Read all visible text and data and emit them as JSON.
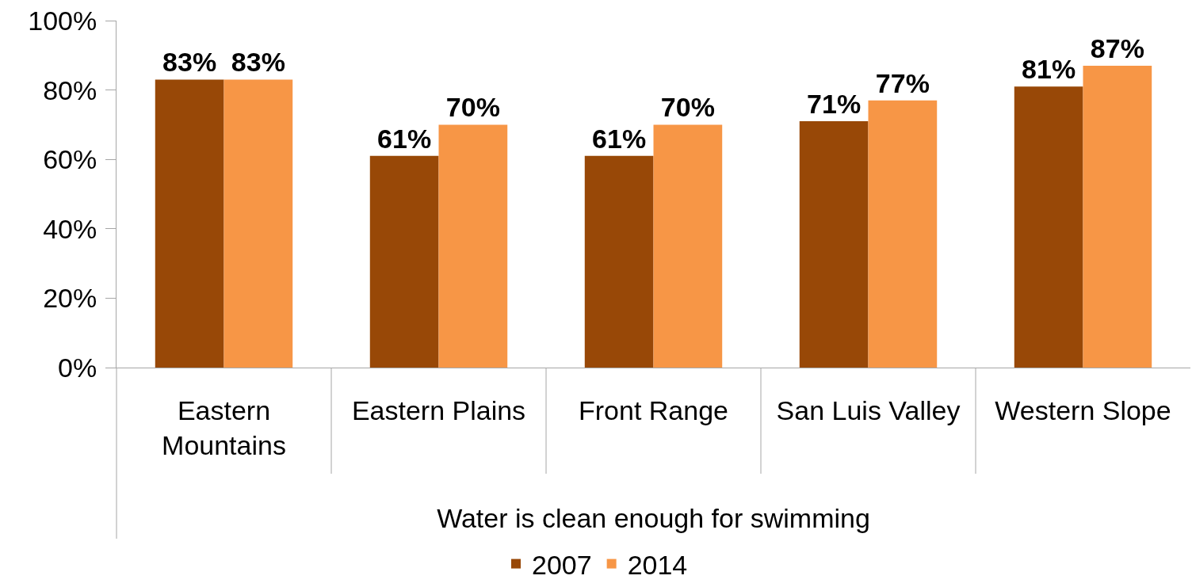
{
  "chart_data": {
    "type": "bar",
    "categories": [
      "Eastern Mountains",
      "Eastern Plains",
      "Front Range",
      "San Luis Valley",
      "Western Slope"
    ],
    "xlabel": "Water is clean enough for swimming",
    "series": [
      {
        "name": "2007",
        "color": "#984807",
        "values": [
          83,
          61,
          61,
          71,
          81
        ],
        "value_labels": [
          "83%",
          "61%",
          "61%",
          "71%",
          "81%"
        ]
      },
      {
        "name": "2014",
        "color": "#f79646",
        "values": [
          83,
          70,
          70,
          77,
          87
        ],
        "value_labels": [
          "83%",
          "70%",
          "70%",
          "77%",
          "87%"
        ]
      }
    ],
    "ylim": [
      0,
      100
    ],
    "yticks": [
      {
        "value": 0,
        "label": "0%"
      },
      {
        "value": 20,
        "label": "20%"
      },
      {
        "value": 40,
        "label": "40%"
      },
      {
        "value": 60,
        "label": "60%"
      },
      {
        "value": 80,
        "label": "80%"
      },
      {
        "value": 100,
        "label": "100%"
      }
    ],
    "legend": "bottom"
  }
}
